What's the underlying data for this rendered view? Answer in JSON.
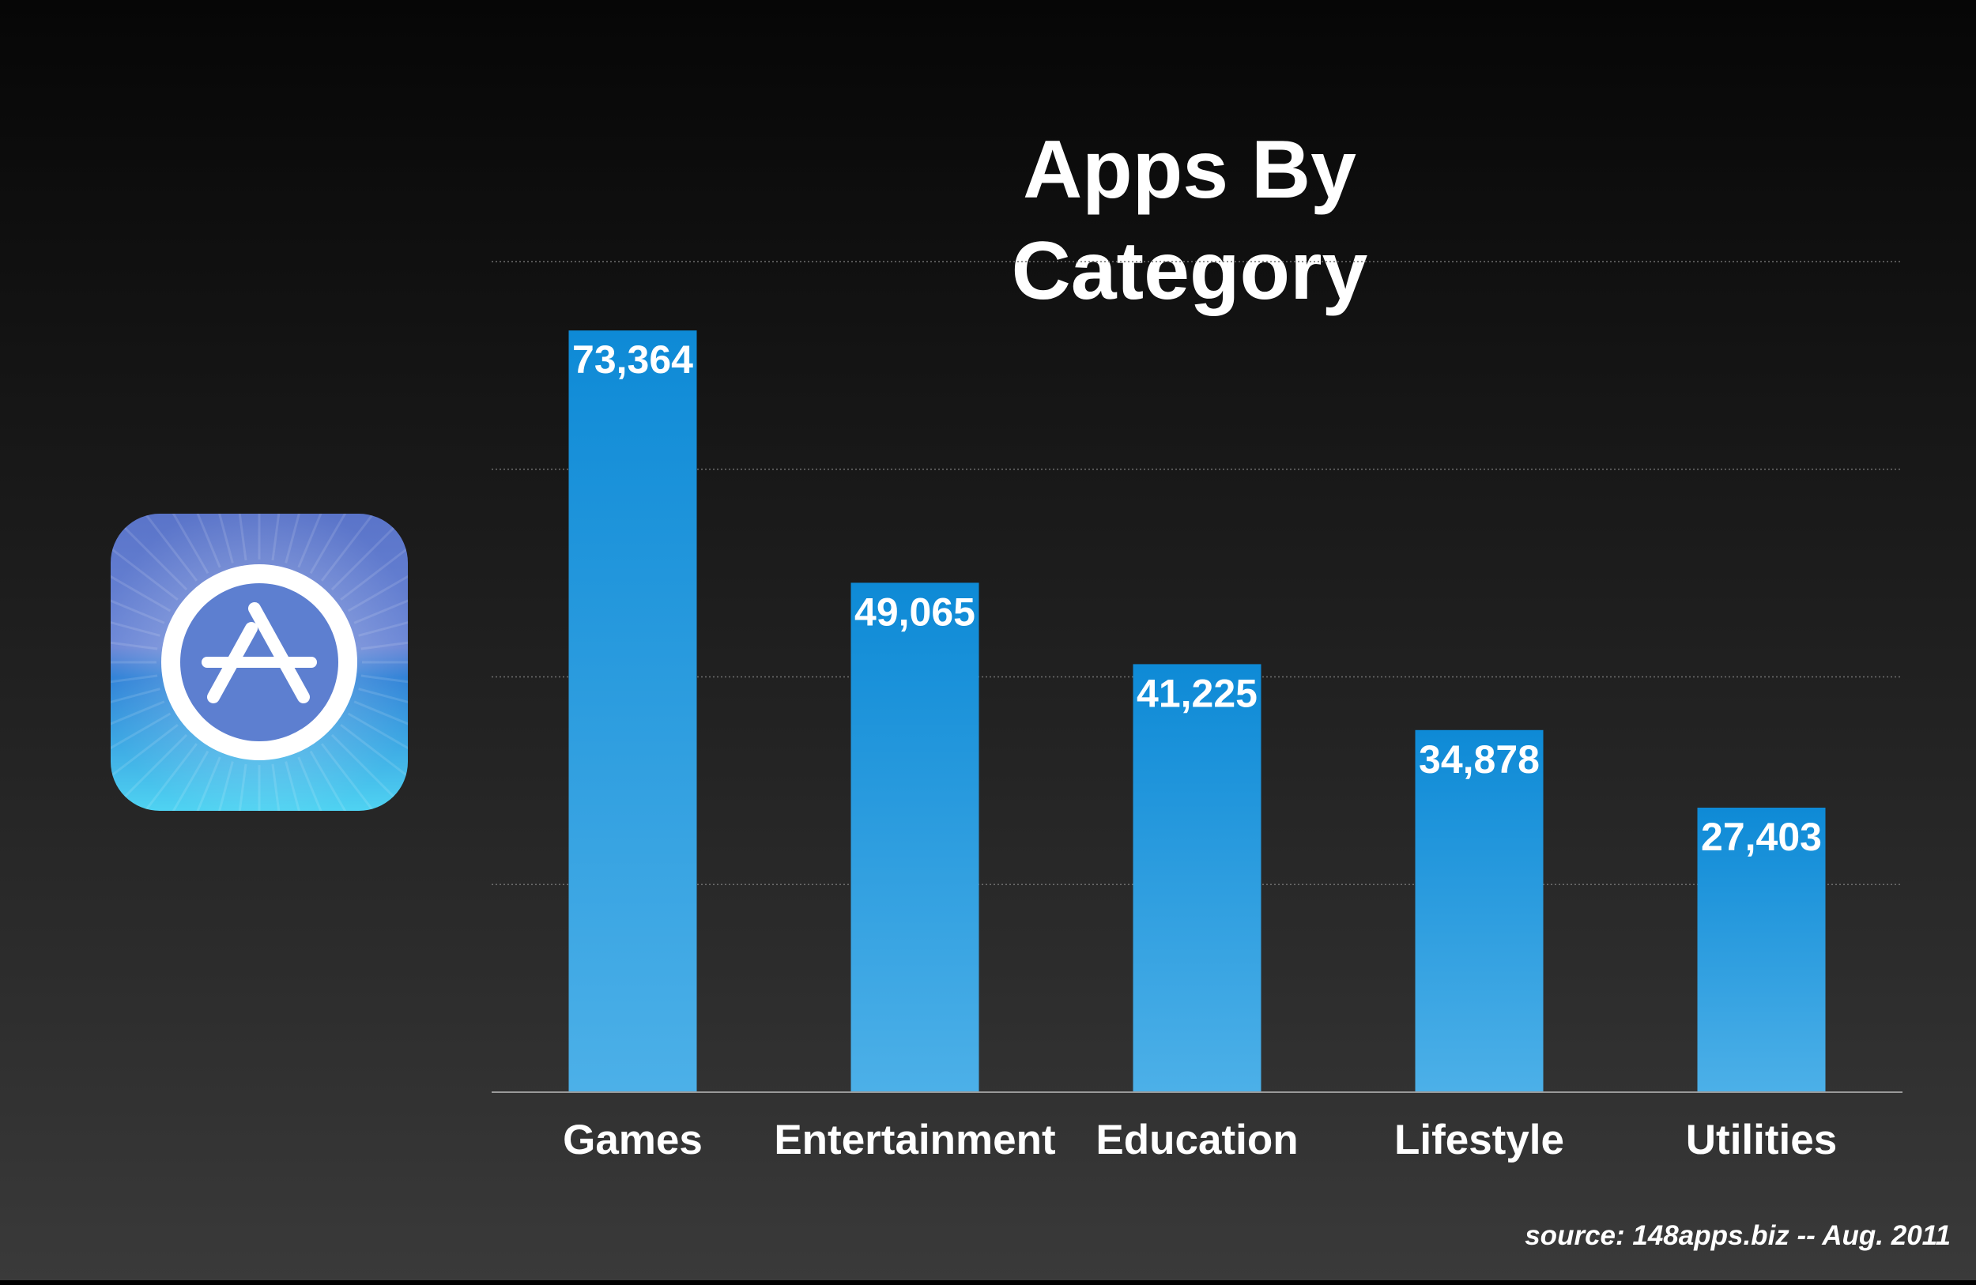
{
  "icon": {
    "name": "app-store-icon",
    "colors": {
      "top": "#5a74c9",
      "bottom": "#4fd3f2",
      "ring": "#ffffff",
      "disc": "#5d7fd0"
    }
  },
  "colors": {
    "bar_top": "#0e8ad6",
    "bar_bottom": "#4cb0e8",
    "gridline": "#6e6e6e",
    "axis": "#9a9a9a",
    "text": "#ffffff"
  },
  "chart_data": {
    "type": "bar",
    "title_lines": [
      "Apps By",
      "Category"
    ],
    "categories": [
      "Games",
      "Entertainment",
      "Education",
      "Lifestyle",
      "Utilities"
    ],
    "values": [
      73364,
      49065,
      41225,
      34878,
      27403
    ],
    "value_labels": [
      "73,364",
      "49,065",
      "41,225",
      "34,878",
      "27,403"
    ],
    "ylim": [
      0,
      80000
    ],
    "yticks": [
      0,
      20000,
      40000,
      60000,
      80000
    ],
    "grid": true,
    "grid_style": "dotted",
    "legend": "none",
    "xlabel": "",
    "ylabel": ""
  },
  "source": "source: 148apps.biz -- Aug. 2011"
}
